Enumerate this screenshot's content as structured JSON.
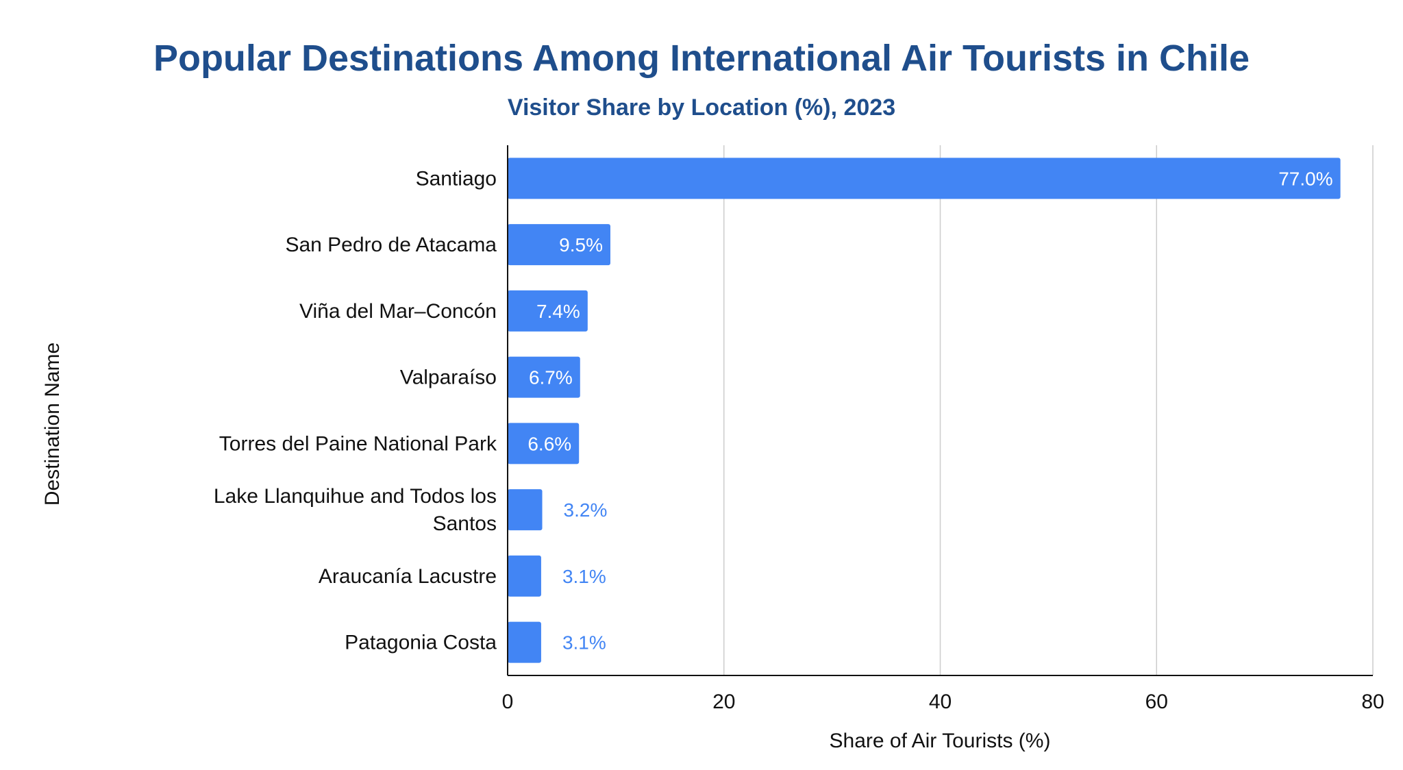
{
  "chart_data": {
    "type": "bar",
    "orientation": "horizontal",
    "title": "Popular Destinations Among International Air Tourists in Chile",
    "subtitle": "Visitor Share by Location (%), 2023",
    "xlabel": "Share of Air Tourists (%)",
    "ylabel": "Destination Name",
    "categories": [
      "Santiago",
      "San Pedro de Atacama",
      "Viña del Mar–Concón",
      "Valparaíso",
      "Torres del Paine National Park",
      "Lake Llanquihue and Todos los Santos",
      "Araucanía Lacustre",
      "Patagonia Costa"
    ],
    "values": [
      77.0,
      9.5,
      7.4,
      6.7,
      6.6,
      3.2,
      3.1,
      3.1
    ],
    "data_labels": [
      "77.0%",
      "9.5%",
      "7.4%",
      "6.7%",
      "6.6%",
      "3.2%",
      "3.1%",
      "3.1%"
    ],
    "xlim": [
      0,
      80
    ],
    "xticks": [
      0,
      20,
      40,
      60,
      80
    ],
    "grid": "vertical",
    "legend": "none",
    "bar_color": "#4285f4",
    "label_inside_color": "#ffffff",
    "label_outside_color": "#4285f4",
    "title_color": "#1f4e8c"
  }
}
